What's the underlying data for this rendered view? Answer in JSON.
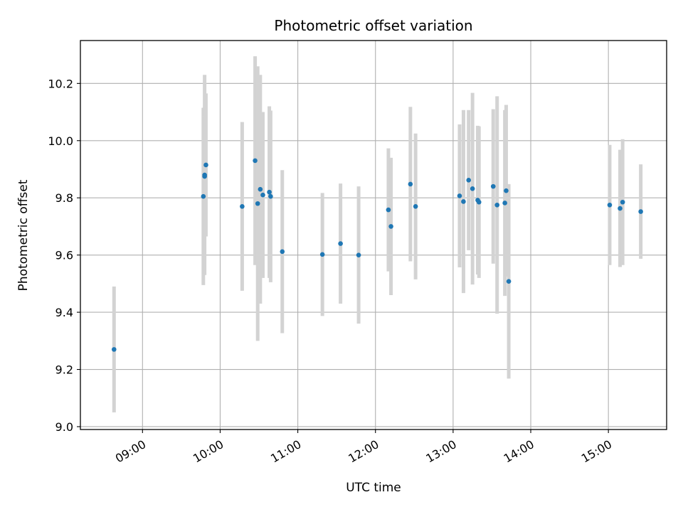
{
  "chart_data": {
    "type": "scatter",
    "title": "Photometric offset variation",
    "xlabel": "UTC time",
    "ylabel": "Photometric offset",
    "x_ticks": [
      "09:00",
      "10:00",
      "11:00",
      "12:00",
      "13:00",
      "14:00",
      "15:00"
    ],
    "y_ticks": [
      "9.0",
      "9.2",
      "9.4",
      "9.6",
      "9.8",
      "10.0",
      "10.2"
    ],
    "xlim": [
      "08:12",
      "15:45"
    ],
    "ylim": [
      8.99,
      10.35
    ],
    "grid": true,
    "colors": {
      "marker": "#1f77b4",
      "errorbar": "#d3d3d3",
      "grid": "#b0b0b0"
    },
    "points": [
      {
        "x": "08:38",
        "y": 9.27,
        "err": 0.22
      },
      {
        "x": "09:47",
        "y": 9.805,
        "err": 0.31
      },
      {
        "x": "09:48",
        "y": 9.88,
        "err": 0.35
      },
      {
        "x": "09:48",
        "y": 9.875,
        "err": 0.21
      },
      {
        "x": "09:49",
        "y": 9.915,
        "err": 0.25
      },
      {
        "x": "10:17",
        "y": 9.77,
        "err": 0.295
      },
      {
        "x": "10:27",
        "y": 9.93,
        "err": 0.365
      },
      {
        "x": "10:29",
        "y": 9.78,
        "err": 0.48
      },
      {
        "x": "10:31",
        "y": 9.83,
        "err": 0.4
      },
      {
        "x": "10:33",
        "y": 9.81,
        "err": 0.29
      },
      {
        "x": "10:38",
        "y": 9.82,
        "err": 0.3
      },
      {
        "x": "10:39",
        "y": 9.805,
        "err": 0.3
      },
      {
        "x": "10:48",
        "y": 9.612,
        "err": 0.285
      },
      {
        "x": "11:19",
        "y": 9.602,
        "err": 0.215
      },
      {
        "x": "11:33",
        "y": 9.64,
        "err": 0.21
      },
      {
        "x": "11:47",
        "y": 9.6,
        "err": 0.24
      },
      {
        "x": "12:10",
        "y": 9.758,
        "err": 0.215
      },
      {
        "x": "12:12",
        "y": 9.7,
        "err": 0.24
      },
      {
        "x": "12:27",
        "y": 9.848,
        "err": 0.27
      },
      {
        "x": "12:31",
        "y": 9.77,
        "err": 0.255
      },
      {
        "x": "13:05",
        "y": 9.807,
        "err": 0.25
      },
      {
        "x": "13:08",
        "y": 9.787,
        "err": 0.32
      },
      {
        "x": "13:12",
        "y": 9.862,
        "err": 0.245
      },
      {
        "x": "13:15",
        "y": 9.832,
        "err": 0.335
      },
      {
        "x": "13:19",
        "y": 9.792,
        "err": 0.26
      },
      {
        "x": "13:20",
        "y": 9.785,
        "err": 0.265
      },
      {
        "x": "13:31",
        "y": 9.84,
        "err": 0.27
      },
      {
        "x": "13:34",
        "y": 9.775,
        "err": 0.38
      },
      {
        "x": "13:40",
        "y": 9.782,
        "err": 0.325
      },
      {
        "x": "13:41",
        "y": 9.825,
        "err": 0.3
      },
      {
        "x": "13:43",
        "y": 9.508,
        "err": 0.34
      },
      {
        "x": "15:01",
        "y": 9.775,
        "err": 0.21
      },
      {
        "x": "15:09",
        "y": 9.763,
        "err": 0.205
      },
      {
        "x": "15:11",
        "y": 9.785,
        "err": 0.22
      },
      {
        "x": "15:25",
        "y": 9.752,
        "err": 0.165
      }
    ]
  }
}
